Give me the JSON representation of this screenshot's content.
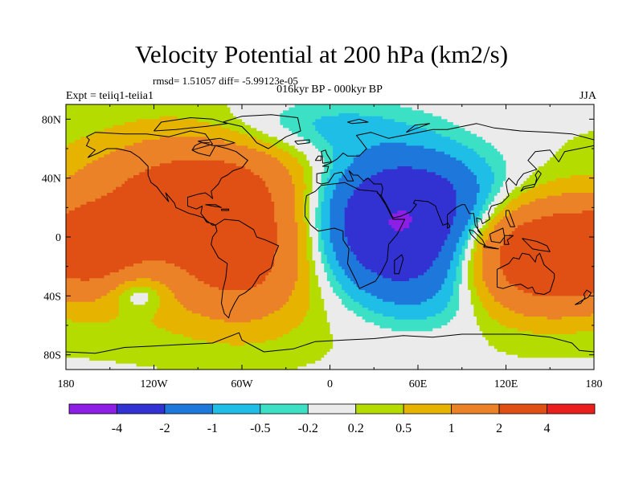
{
  "header": {
    "title": "Velocity Potential at 200 hPa (km2/s)",
    "stats": "rmsd= 1.51057 diff= -5.99123e-05",
    "subtitle": "016kyr BP - 000kyr BP",
    "left_label": "Expt = teiiq1-teiia1",
    "right_label": "JJA"
  },
  "chart_data": {
    "type": "heatmap",
    "title": "Velocity Potential at 200 hPa (km2/s)",
    "xlabel": "",
    "ylabel": "",
    "xlim": [
      -180,
      180
    ],
    "ylim": [
      -90,
      90
    ],
    "x_ticks": [
      {
        "value": -180,
        "label": "180"
      },
      {
        "value": -120,
        "label": "120W"
      },
      {
        "value": -60,
        "label": "60W"
      },
      {
        "value": 0,
        "label": "0"
      },
      {
        "value": 60,
        "label": "60E"
      },
      {
        "value": 120,
        "label": "120E"
      },
      {
        "value": 180,
        "label": "180"
      }
    ],
    "y_ticks": [
      {
        "value": 80,
        "label": "80N"
      },
      {
        "value": 40,
        "label": "40N"
      },
      {
        "value": 0,
        "label": "0"
      },
      {
        "value": -40,
        "label": "40S"
      },
      {
        "value": -80,
        "label": "80S"
      }
    ],
    "contour_levels": [
      -4,
      -2,
      -1,
      -0.5,
      -0.2,
      0.2,
      0.5,
      1,
      2,
      4
    ],
    "colorbar_labels": [
      "-4",
      "-2",
      "-1",
      "-0.5",
      "-0.2",
      "0.2",
      "0.5",
      "1",
      "2",
      "4"
    ],
    "colors": [
      "#8c1ee6",
      "#3232d2",
      "#1e78dc",
      "#1ebee6",
      "#3ce0c4",
      "#ebebeb",
      "#b4dc00",
      "#e6b400",
      "#eb8228",
      "#e05014",
      "#eb1e1e"
    ],
    "features": [
      {
        "name": "negative center",
        "lon": 50,
        "lat": 5,
        "value": -4.5
      },
      {
        "name": "positive center Caribbean",
        "lon": -80,
        "lat": 20,
        "value": 2.5
      },
      {
        "name": "positive center Maritime Continent",
        "lon": 125,
        "lat": -10,
        "value": 2.8
      },
      {
        "name": "positive center central Pacific",
        "lon": -170,
        "lat": -10,
        "value": 2.2
      }
    ]
  }
}
